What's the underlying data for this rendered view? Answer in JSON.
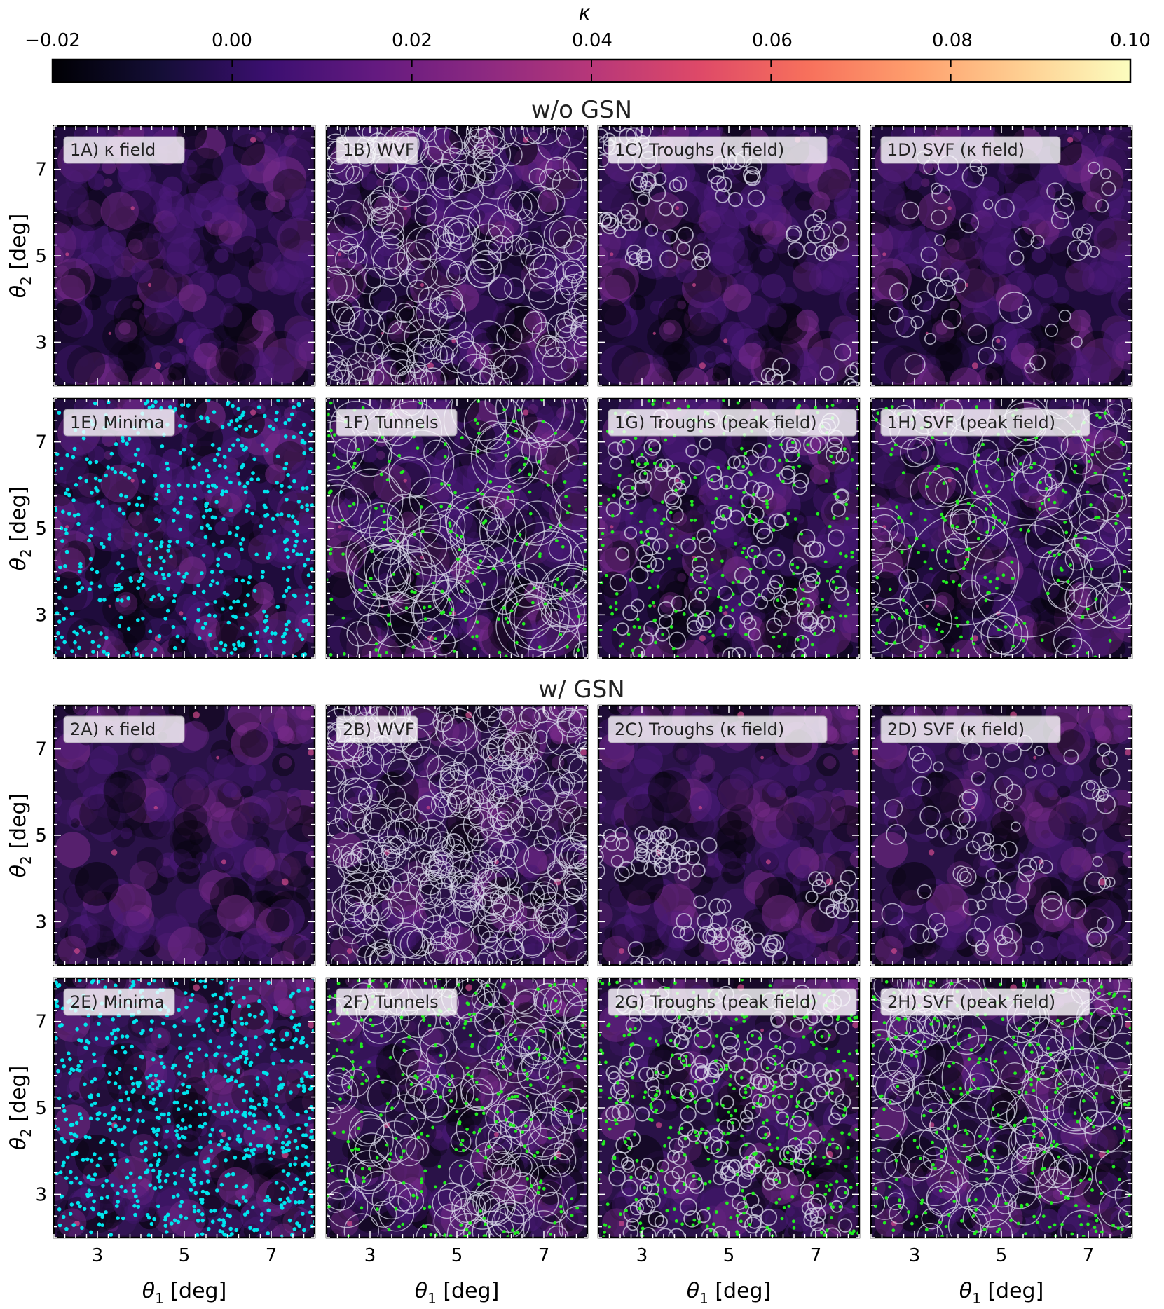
{
  "colorbar": {
    "label": "κ",
    "ticks": [
      "−0.02",
      "0.00",
      "0.02",
      "0.04",
      "0.06",
      "0.08",
      "0.10"
    ],
    "range": [
      -0.02,
      0.1
    ],
    "colormap": "magma"
  },
  "sections": [
    {
      "id": "1",
      "title": "w/o GSN"
    },
    {
      "id": "2",
      "title": "w/ GSN"
    }
  ],
  "axes": {
    "xlabel": "θ",
    "xlabel_sub": "1",
    "ylabel": "θ",
    "ylabel_sub": "2",
    "unit": "[deg]",
    "xticks": [
      "3",
      "5",
      "7"
    ],
    "yticks": [
      "7",
      "5",
      "3"
    ],
    "range": [
      2,
      8
    ]
  },
  "chart_data": {
    "type": "heatmap",
    "x_range": [
      2,
      8
    ],
    "y_range": [
      2,
      8
    ],
    "tick_values": [
      3,
      5,
      7
    ],
    "point_colors": {
      "minima": "#00e5ee",
      "peaks": "#22ee22"
    },
    "circle_color": "#d8d8e8",
    "panels": [
      {
        "id": "1A",
        "label": "1A) κ field",
        "overlay": "none",
        "noise": false
      },
      {
        "id": "1B",
        "label": "1B) WVF",
        "overlay": "voids",
        "noise": false
      },
      {
        "id": "1C",
        "label": "1C) Troughs (κ field)",
        "overlay": "troughs",
        "noise": false
      },
      {
        "id": "1D",
        "label": "1D) SVF (κ field)",
        "overlay": "svf",
        "noise": false
      },
      {
        "id": "1E",
        "label": "1E) Minima",
        "overlay": "minima",
        "noise": false
      },
      {
        "id": "1F",
        "label": "1F) Tunnels",
        "overlay": "tunnels",
        "noise": false
      },
      {
        "id": "1G",
        "label": "1G) Troughs (peak field)",
        "overlay": "troughs-peaks",
        "noise": false
      },
      {
        "id": "1H",
        "label": "1H) SVF (peak field)",
        "overlay": "svf-peaks",
        "noise": false
      },
      {
        "id": "2A",
        "label": "2A) κ field",
        "overlay": "none",
        "noise": true
      },
      {
        "id": "2B",
        "label": "2B) WVF",
        "overlay": "voids",
        "noise": true
      },
      {
        "id": "2C",
        "label": "2C) Troughs (κ field)",
        "overlay": "troughs",
        "noise": true
      },
      {
        "id": "2D",
        "label": "2D) SVF (κ field)",
        "overlay": "svf",
        "noise": true
      },
      {
        "id": "2E",
        "label": "2E) Minima",
        "overlay": "minima",
        "noise": true
      },
      {
        "id": "2F",
        "label": "2F) Tunnels",
        "overlay": "tunnels",
        "noise": true
      },
      {
        "id": "2G",
        "label": "2G) Troughs (peak field)",
        "overlay": "troughs-peaks",
        "noise": true
      },
      {
        "id": "2H",
        "label": "2H) SVF (peak field)",
        "overlay": "svf-peaks",
        "noise": true
      }
    ]
  }
}
